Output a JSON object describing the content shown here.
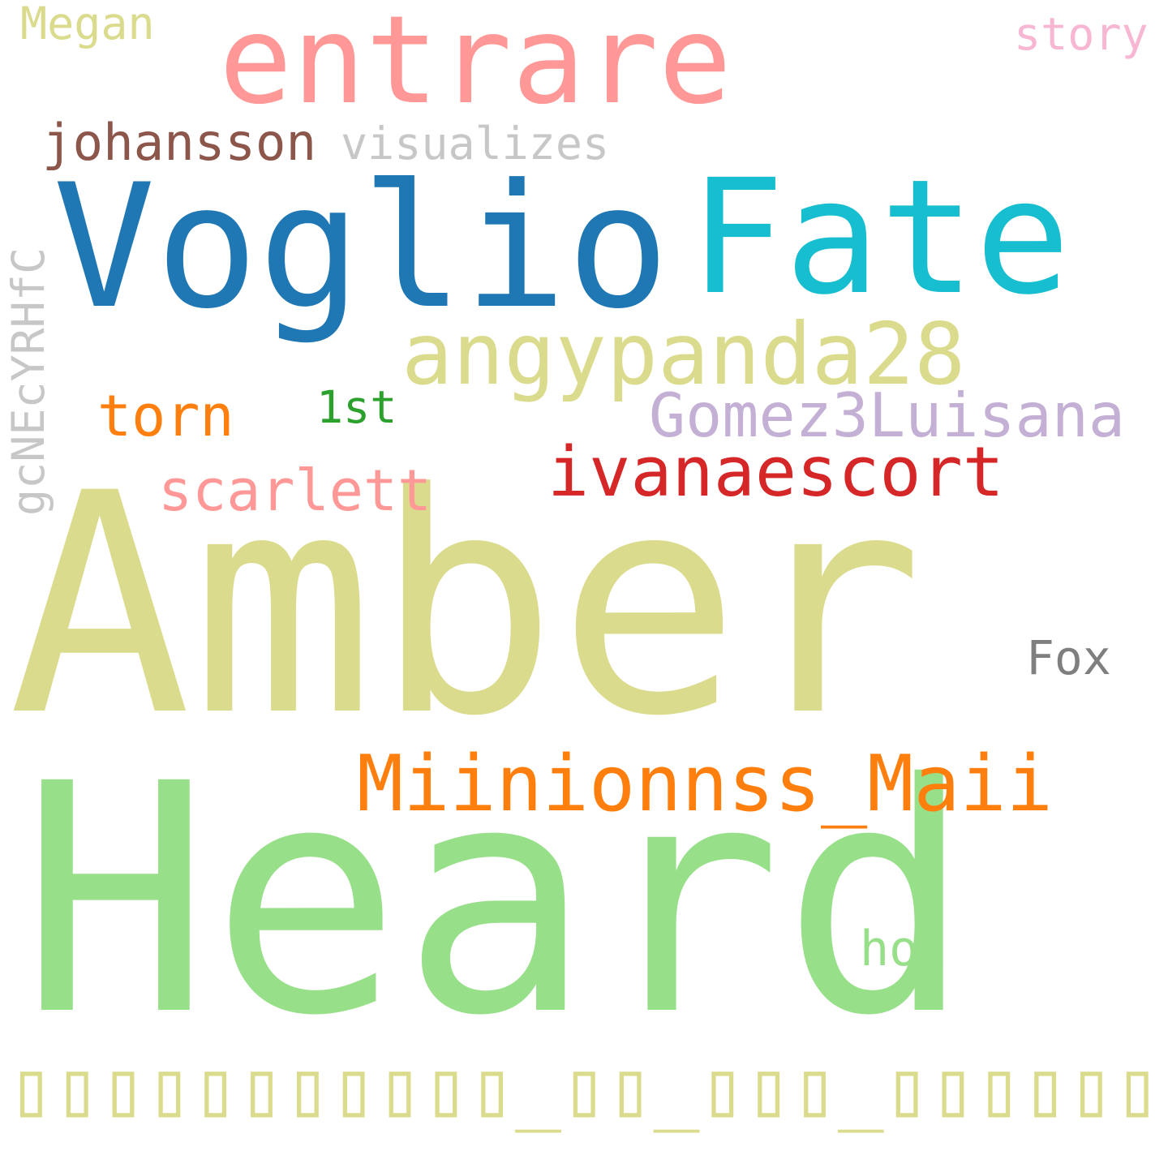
{
  "background": "#ffffff",
  "words": [
    {
      "id": "amber",
      "text": "Amber",
      "color": "#dbdb8d"
    },
    {
      "id": "heard",
      "text": "Heard",
      "color": "#98df8a"
    },
    {
      "id": "voglio",
      "text": "Voglio",
      "color": "#1f77b4"
    },
    {
      "id": "fate",
      "text": "Fate",
      "color": "#17becf"
    },
    {
      "id": "entrare",
      "text": "entrare",
      "color": "#ff9896"
    },
    {
      "id": "angypanda28",
      "text": "angypanda28",
      "color": "#dbdb8d"
    },
    {
      "id": "miinionnss-maii",
      "text": "Miinionnss_Maii",
      "color": "#ff7f0e"
    },
    {
      "id": "ivanaescort",
      "text": "ivanaescort",
      "color": "#d62728"
    },
    {
      "id": "gomez3luisana",
      "text": "Gomez3Luisana",
      "color": "#c5b0d5"
    },
    {
      "id": "torn",
      "text": "torn",
      "color": "#ff7f0e"
    },
    {
      "id": "scarlett",
      "text": "scarlett",
      "color": "#ff9896"
    },
    {
      "id": "johansson",
      "text": "johansson",
      "color": "#8c564b"
    },
    {
      "id": "visualizes",
      "text": "visualizes",
      "color": "#c7c7c7"
    },
    {
      "id": "1st",
      "text": "1st",
      "color": "#2ca02c"
    },
    {
      "id": "fox",
      "text": "Fox",
      "color": "#7f7f7f"
    },
    {
      "id": "hot",
      "text": "hot",
      "color": "#98df8a"
    },
    {
      "id": "megan",
      "text": "Megan",
      "color": "#dbdb8d"
    },
    {
      "id": "story",
      "text": "story",
      "color": "#f7b6d2"
    },
    {
      "id": "gcnecyrhfc",
      "text": "gcNEcYRHfC",
      "color": "#c7c7c7"
    },
    {
      "id": "missing-glyphs",
      "text": "▯▯▯▯▯▯▯▯▯▯▯_▯▯_▯▯▯_▯▯▯▯▯▯",
      "color": "#dbdb8d"
    }
  ]
}
